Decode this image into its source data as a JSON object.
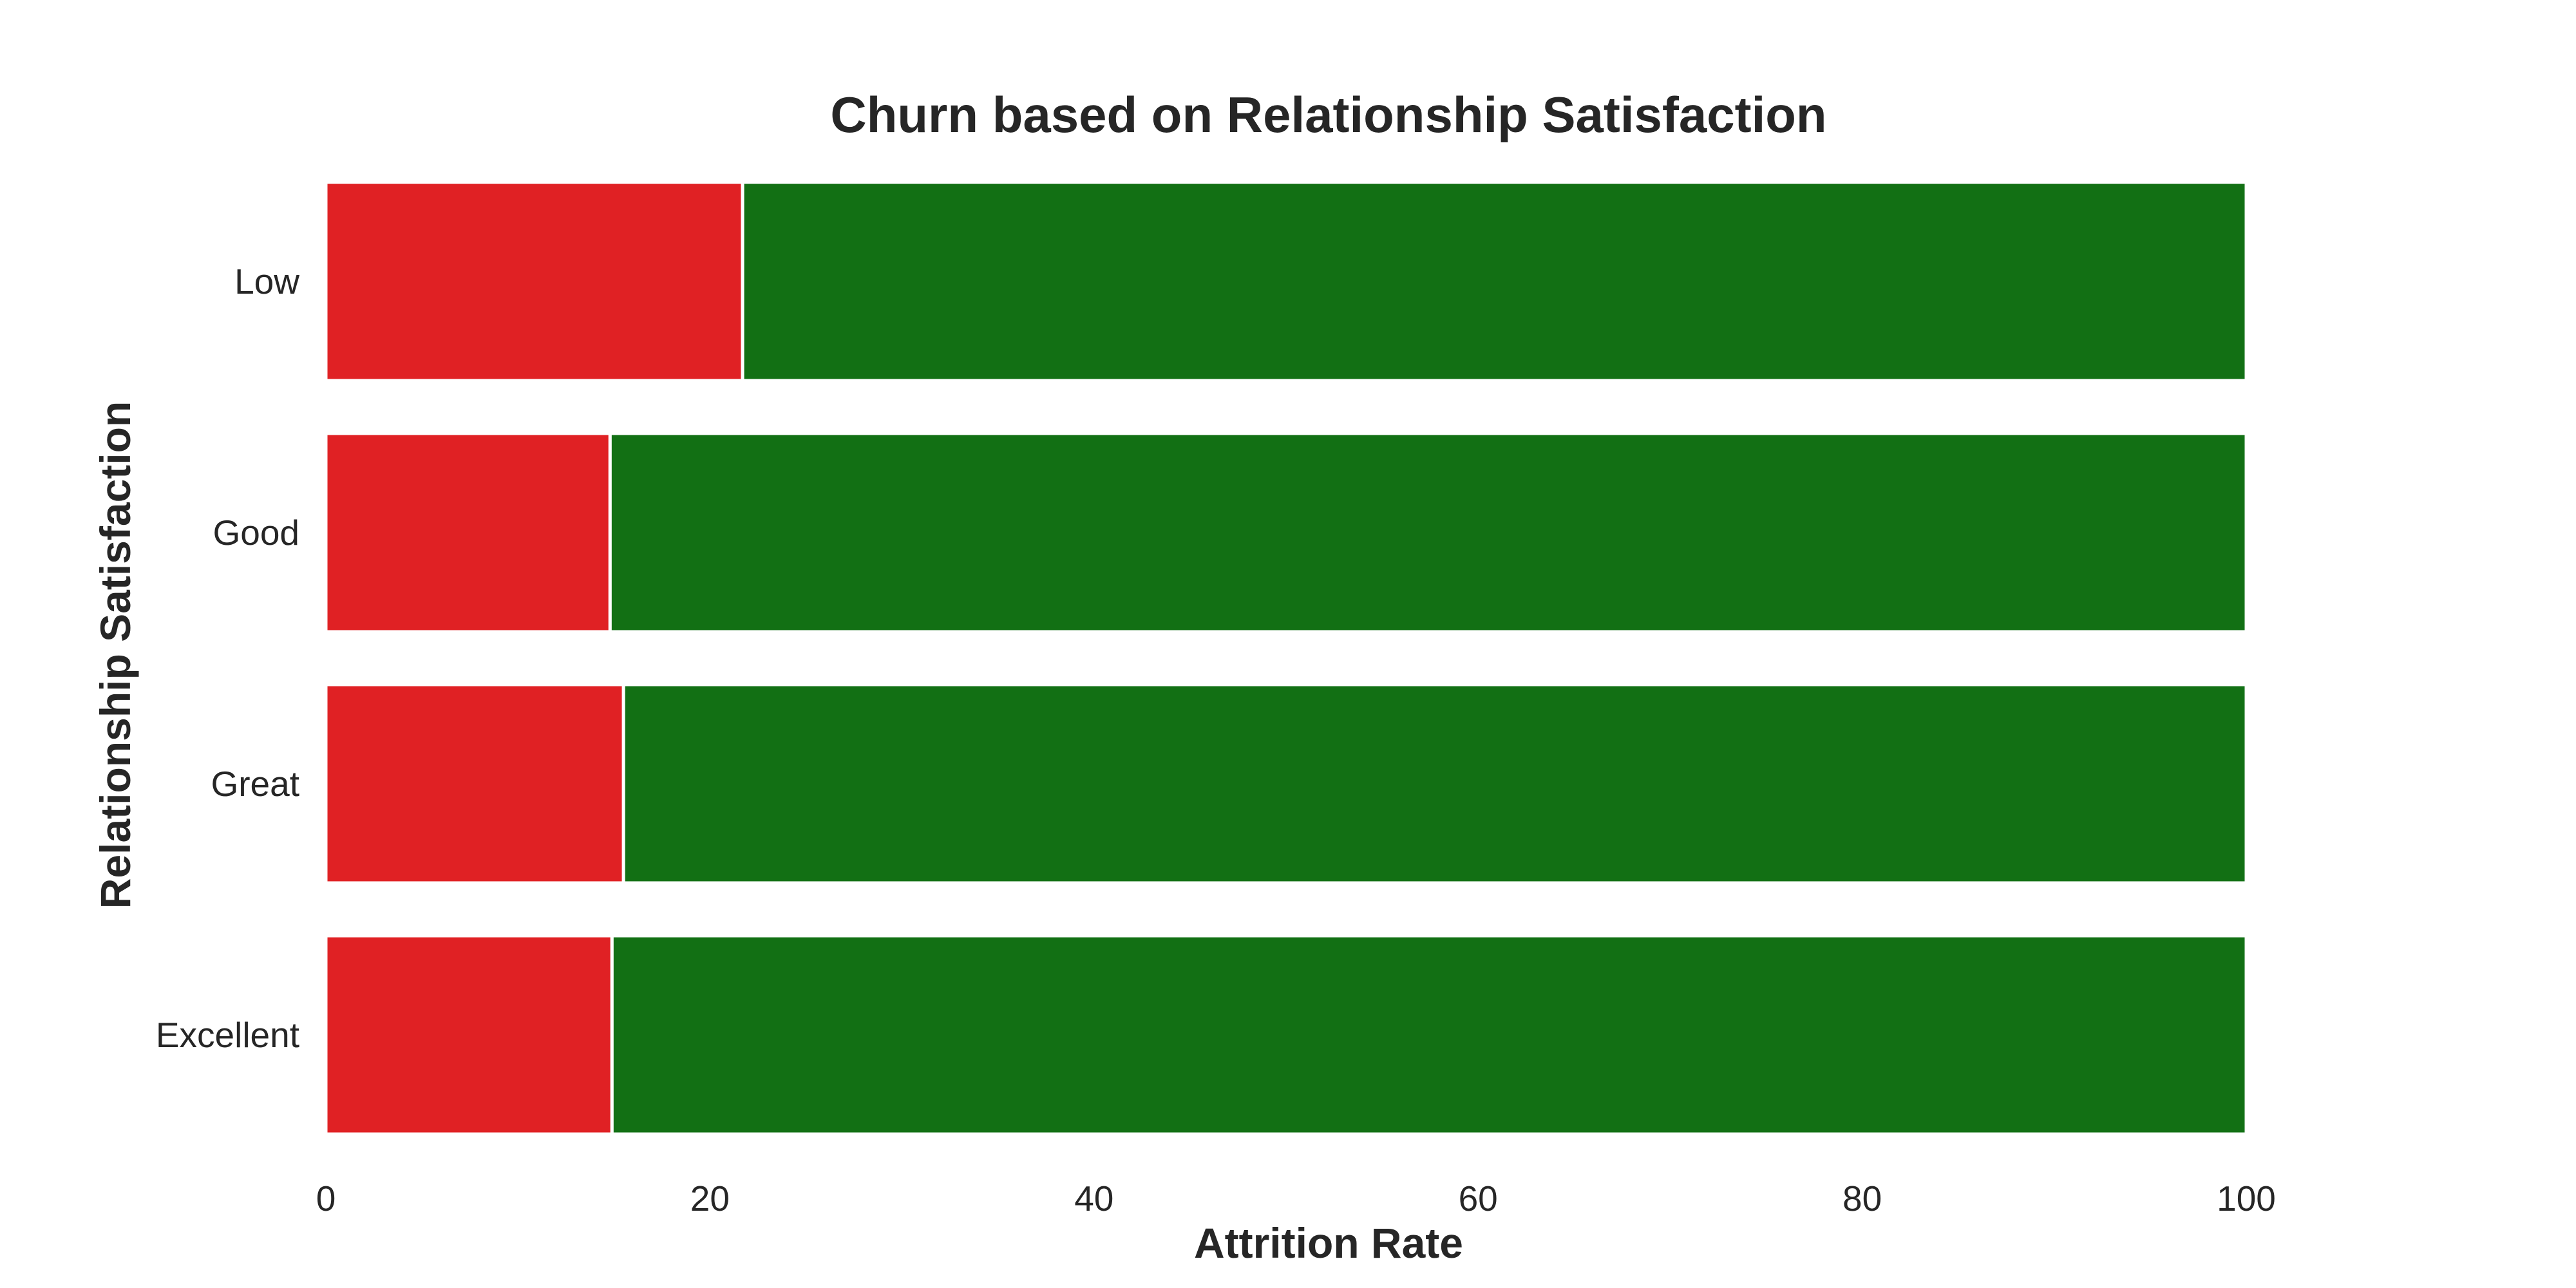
{
  "chart_data": {
    "type": "bar",
    "orientation": "horizontal",
    "stacked": true,
    "title": "Churn based on Relationship Satisfaction",
    "xlabel": "Attrition Rate",
    "ylabel": "Relationship Satisfaction",
    "categories": [
      "Low",
      "Good",
      "Great",
      "Excellent"
    ],
    "series": [
      {
        "values": [
          21.7,
          14.8,
          15.5,
          14.9
        ],
        "color": "#e02124"
      },
      {
        "values": [
          78.3,
          85.2,
          84.5,
          85.1
        ],
        "color": "#127014"
      }
    ],
    "xlim": [
      0,
      100
    ],
    "xticks": [
      "0",
      "20",
      "40",
      "60",
      "80",
      "100"
    ],
    "grid": false,
    "legend": "none"
  }
}
